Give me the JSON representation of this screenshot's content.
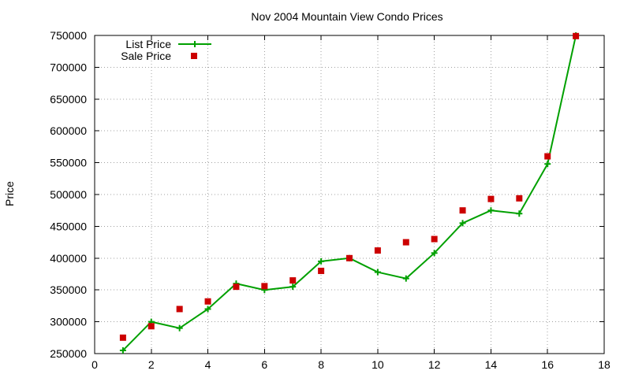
{
  "chart_data": {
    "type": "line",
    "title": "Nov 2004 Mountain View Condo Prices",
    "xlabel": "",
    "ylabel": "Price",
    "xlim": [
      0,
      18
    ],
    "ylim": [
      250000,
      750000
    ],
    "x_ticks": [
      0,
      2,
      4,
      6,
      8,
      10,
      12,
      14,
      16,
      18
    ],
    "y_ticks": [
      250000,
      300000,
      350000,
      400000,
      450000,
      500000,
      550000,
      600000,
      650000,
      700000,
      750000
    ],
    "grid": true,
    "legend_position": "top-left",
    "x": [
      1,
      2,
      3,
      4,
      5,
      6,
      7,
      8,
      9,
      10,
      11,
      12,
      13,
      14,
      15,
      16,
      17
    ],
    "series": [
      {
        "name": "List Price",
        "style": "line-with-plus-markers",
        "color": "#00a000",
        "values": [
          255000,
          300000,
          290000,
          320000,
          360000,
          350000,
          355000,
          395000,
          400000,
          378000,
          368000,
          408000,
          455000,
          475000,
          470000,
          548000,
          750000
        ]
      },
      {
        "name": "Sale Price",
        "style": "square-markers",
        "color": "#cc0000",
        "values": [
          275000,
          293000,
          320000,
          332000,
          355000,
          356000,
          365000,
          380000,
          400000,
          412000,
          425000,
          430000,
          475000,
          493000,
          494000,
          560000,
          749000
        ]
      }
    ]
  }
}
